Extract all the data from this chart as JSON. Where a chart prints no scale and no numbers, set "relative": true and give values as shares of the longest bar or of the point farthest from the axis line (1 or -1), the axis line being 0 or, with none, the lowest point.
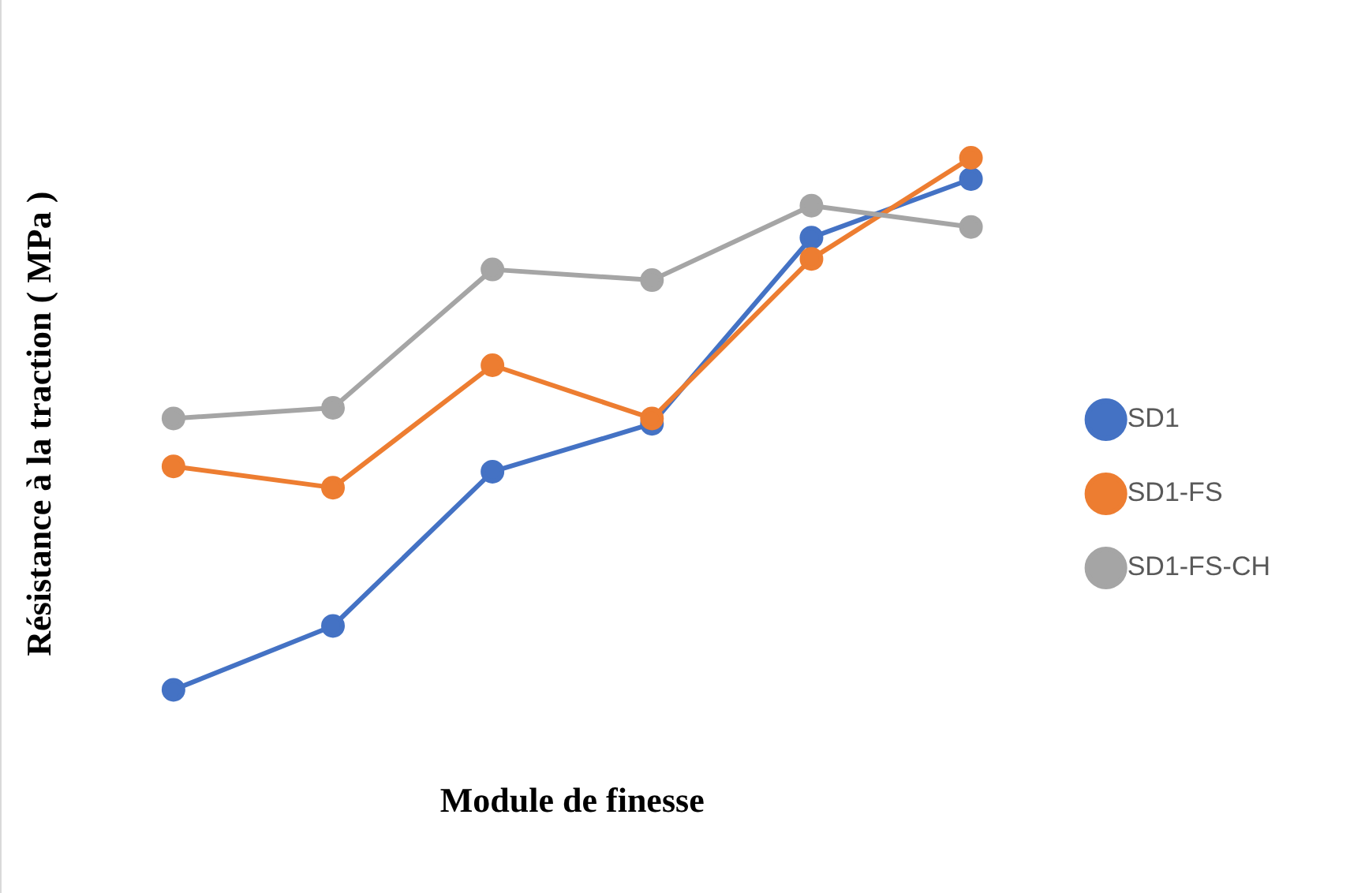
{
  "chart_data": {
    "type": "line",
    "xlabel": "Module de finesse",
    "ylabel": "Résistance à la traction ( MPa )",
    "relative": true,
    "categories": [
      null,
      null,
      null,
      null,
      null,
      null
    ],
    "legend": "right",
    "marker": "circle",
    "grid": false,
    "series": [
      {
        "name": "SD1",
        "color": "#4472c4",
        "values": [
          0,
          0.12,
          0.41,
          0.5,
          0.85,
          0.96
        ]
      },
      {
        "name": "SD1-FS",
        "color": "#ed7d31",
        "values": [
          0.42,
          0.38,
          0.61,
          0.51,
          0.81,
          1
        ]
      },
      {
        "name": "SD1-FS-CH",
        "color": "#a5a5a5",
        "values": [
          0.51,
          0.53,
          0.79,
          0.77,
          0.91,
          0.87
        ]
      }
    ]
  }
}
